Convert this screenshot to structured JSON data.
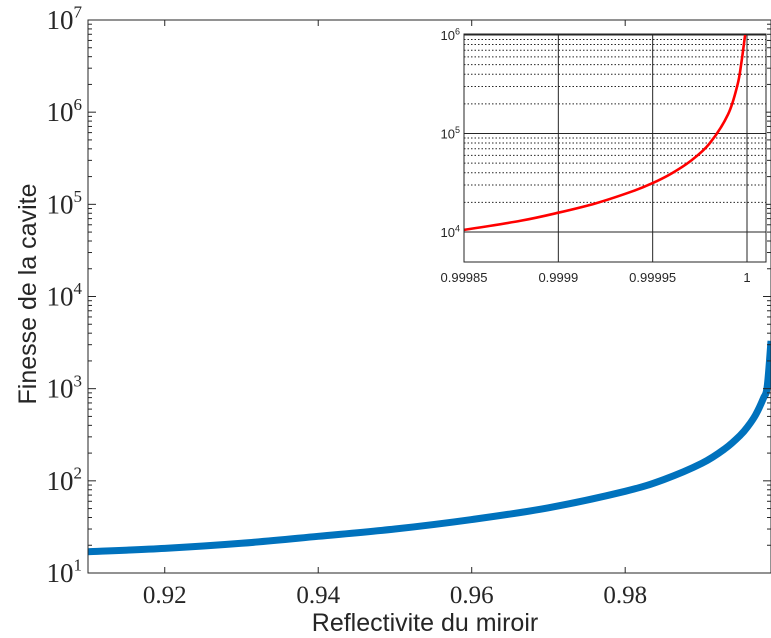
{
  "chart_data": [
    {
      "type": "line",
      "xlabel": "Reflectivite du miroir",
      "ylabel": "Finesse de la cavite",
      "xlim": [
        0.91,
        0.999
      ],
      "ylim": [
        10,
        10000000
      ],
      "y_scale": "log",
      "grid": false,
      "x_ticks": [
        0.92,
        0.94,
        0.96,
        0.98
      ],
      "x_tick_labels": [
        "0.92",
        "0.94",
        "0.96",
        "0.98"
      ],
      "y_tick_exponents": [
        1,
        2,
        3,
        4,
        5,
        6,
        7
      ],
      "y_tick_base": "10",
      "series": [
        {
          "color": "#0072bd",
          "x": [
            0.91,
            0.92,
            0.93,
            0.94,
            0.95,
            0.96,
            0.97,
            0.98,
            0.985,
            0.99,
            0.993,
            0.995,
            0.996,
            0.997,
            0.998,
            0.9985,
            0.999
          ],
          "y": [
            17,
            18.5,
            21,
            25,
            30,
            38,
            51,
            77,
            103,
            155,
            223,
            312,
            391,
            521,
            783,
            1045,
            3300
          ]
        }
      ]
    },
    {
      "type": "line",
      "xlim": [
        0.99985,
        1.0
      ],
      "ylim": [
        10000,
        1000000
      ],
      "y_scale": "log",
      "grid": true,
      "x_ticks": [
        0.99985,
        0.9999,
        0.99995,
        1.0
      ],
      "x_tick_labels": [
        "0.99985",
        "0.9999",
        "0.99995",
        "1"
      ],
      "y_tick_exponents": [
        4,
        5,
        6
      ],
      "y_tick_base": "10",
      "series": [
        {
          "color": "#ff0000",
          "x": [
            0.99985,
            0.99988,
            0.9999,
            0.99992,
            0.99994,
            0.99995,
            0.99996,
            0.99997,
            0.99998,
            0.99999,
            0.999995,
            0.999997,
            0.999999
          ],
          "y": [
            10500,
            13000,
            15700,
            19600,
            26200,
            31400,
            39300,
            52400,
            78500,
            157000,
            314000,
            520000,
            1000000
          ]
        }
      ]
    }
  ]
}
